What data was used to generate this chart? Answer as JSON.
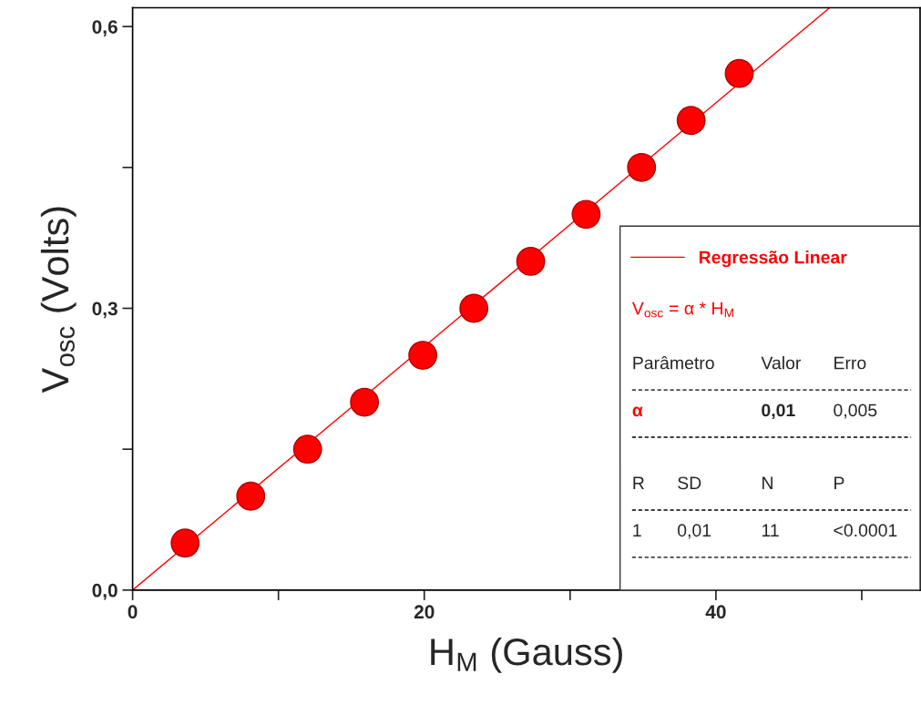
{
  "chart_data": {
    "type": "scatter",
    "xlabel": "H$_{M}$ (Gauss)",
    "ylabel": "V$_{osc}$ (Volts)",
    "xlim": [
      0,
      54
    ],
    "ylim": [
      0,
      0.62
    ],
    "xticks": [
      0,
      {
        "value": 10,
        "label": null
      },
      20,
      {
        "value": 30,
        "label": null
      },
      40,
      {
        "value": 50,
        "label": null
      }
    ],
    "yticks": [
      {
        "value": 0,
        "label": "0,0"
      },
      {
        "value": 0.15,
        "label": null
      },
      {
        "value": 0.3,
        "label": "0,3"
      },
      {
        "value": 0.45,
        "label": null
      },
      {
        "value": 0.6,
        "label": "0,6"
      }
    ],
    "grid": false,
    "legend": "right",
    "marker": "circle",
    "series": [
      {
        "color": "#ff0000",
        "x": [
          3.6,
          8.1,
          12.0,
          15.9,
          19.9,
          23.4,
          27.3,
          31.1,
          34.9,
          38.3,
          41.6
        ],
        "values": [
          0.05,
          0.1,
          0.15,
          0.2,
          0.25,
          0.3,
          0.35,
          0.4,
          0.45,
          0.5,
          0.55
        ]
      },
      {
        "type": "line",
        "name": "Regressão Linear",
        "color": "#ff0000",
        "marker": "none",
        "line_style": "solid",
        "x": [
          0,
          47.8
        ],
        "values": [
          0,
          0.62
        ]
      }
    ],
    "annotations": [
      "V$_{osc}$ = α * H$_{M}$",
      "Parâmetro",
      "Valor",
      "Erro",
      "α",
      "0,01",
      "0,005",
      "R",
      "SD",
      "N",
      "P",
      "1",
      "0,01",
      "11",
      "<0.0001"
    ]
  }
}
